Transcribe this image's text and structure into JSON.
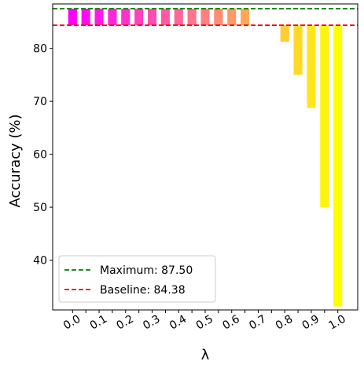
{
  "chart_data": {
    "type": "bar",
    "xlabel": "λ",
    "ylabel": "Accuracy (%)",
    "ylim": [
      30.6,
      88.4
    ],
    "yticks": [
      40,
      50,
      60,
      70,
      80
    ],
    "xtick_labels": [
      "0.0",
      "0.1",
      "0.2",
      "0.3",
      "0.4",
      "0.5",
      "0.6",
      "0.7",
      "0.8",
      "0.9",
      "1.0"
    ],
    "x": [
      0.0,
      0.05,
      0.1,
      0.15,
      0.2,
      0.25,
      0.3,
      0.35,
      0.4,
      0.45,
      0.5,
      0.55,
      0.6,
      0.65,
      0.7,
      0.75,
      0.8,
      0.85,
      0.9,
      0.95,
      1.0
    ],
    "values": [
      87.5,
      87.5,
      87.5,
      87.5,
      87.5,
      87.5,
      87.5,
      87.5,
      87.5,
      87.5,
      87.5,
      87.5,
      87.5,
      87.5,
      84.38,
      84.38,
      81.25,
      75.0,
      68.75,
      50.0,
      31.25
    ],
    "bar_colors": [
      "#ff00ff",
      "#ff0df2",
      "#ff1ae5",
      "#ff26d9",
      "#ff33cc",
      "#ff40bf",
      "#ff4db2",
      "#ff59a6",
      "#ff6699",
      "#ff738c",
      "#ff8080",
      "#ff8c73",
      "#ff9966",
      "#ffa659",
      "#ffb24d",
      "#ffbf40",
      "#ffcc33",
      "#ffd926",
      "#ffe61a",
      "#fff20d",
      "#ffff00"
    ],
    "hlines": [
      {
        "name": "Maximum: 87.50",
        "value": 87.5,
        "color": "#008000",
        "style": "dashed"
      },
      {
        "name": "Baseline: 84.38",
        "value": 84.38,
        "color": "#ff0000",
        "style": "dashed"
      }
    ],
    "legend_position": "lower-left",
    "grid": false
  }
}
